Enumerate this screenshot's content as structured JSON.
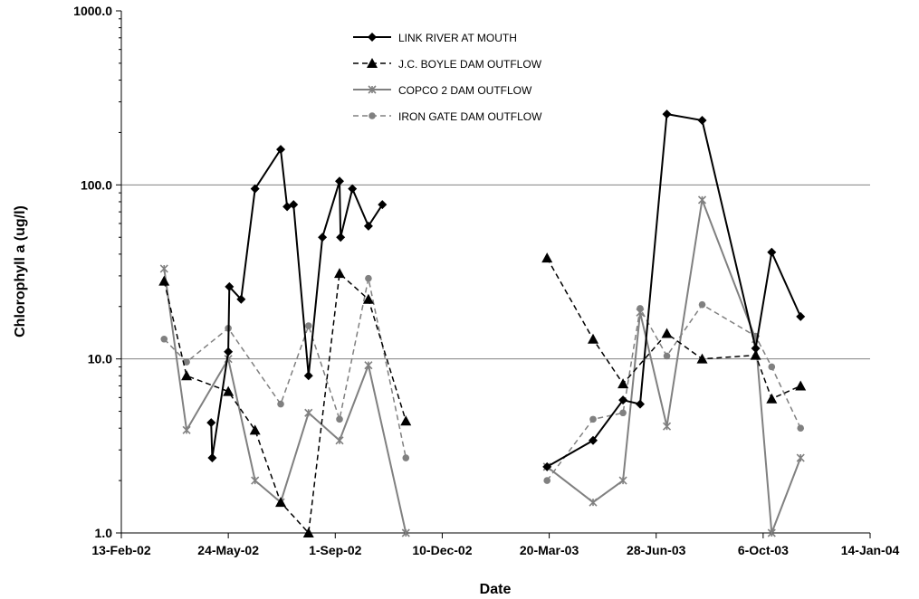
{
  "chart_data": {
    "type": "line",
    "xlabel": "Date",
    "ylabel": "Chlorophyll a (ug/l)",
    "y_scale": "log",
    "ylim": [
      1,
      1000
    ],
    "xlim": [
      "2002-02-13",
      "2004-01-14"
    ],
    "x_ticks": [
      {
        "date": "2002-02-13",
        "label": "13-Feb-02"
      },
      {
        "date": "2002-05-24",
        "label": "24-May-02"
      },
      {
        "date": "2002-09-01",
        "label": "1-Sep-02"
      },
      {
        "date": "2002-12-10",
        "label": "10-Dec-02"
      },
      {
        "date": "2003-03-20",
        "label": "20-Mar-03"
      },
      {
        "date": "2003-06-28",
        "label": "28-Jun-03"
      },
      {
        "date": "2003-10-06",
        "label": "6-Oct-03"
      },
      {
        "date": "2004-01-14",
        "label": "14-Jan-04"
      }
    ],
    "y_ticks": [
      {
        "value": 1,
        "label": "1.0"
      },
      {
        "value": 10,
        "label": "10.0"
      },
      {
        "value": 100,
        "label": "100.0"
      },
      {
        "value": 1000,
        "label": "1000.0"
      }
    ],
    "grid": "horizontal major lines at 10 and 100",
    "legend_position": "top-center",
    "series": [
      {
        "name": "LINK RIVER AT MOUTH",
        "color": "#000000",
        "dashed": false,
        "marker": "diamond",
        "segments": [
          [
            [
              "2002-05-08",
              4.3
            ],
            [
              "2002-05-09",
              2.7
            ],
            [
              "2002-05-24",
              11
            ],
            [
              "2002-05-25",
              26
            ],
            [
              "2002-06-05",
              22
            ],
            [
              "2002-06-18",
              95
            ],
            [
              "2002-07-12",
              160
            ],
            [
              "2002-07-18",
              75
            ],
            [
              "2002-07-24",
              77
            ],
            [
              "2002-08-07",
              8
            ],
            [
              "2002-08-20",
              50
            ],
            [
              "2002-09-05",
              105
            ],
            [
              "2002-09-06",
              50
            ],
            [
              "2002-09-17",
              95
            ],
            [
              "2002-10-02",
              58
            ],
            [
              "2002-10-15",
              77
            ]
          ],
          [
            [
              "2003-03-18",
              2.4
            ],
            [
              "2003-04-30",
              3.4
            ],
            [
              "2003-05-28",
              5.8
            ],
            [
              "2003-06-13",
              5.5
            ],
            [
              "2003-07-08",
              255
            ],
            [
              "2003-08-10",
              235
            ],
            [
              "2003-09-29",
              11.5
            ],
            [
              "2003-10-14",
              41
            ],
            [
              "2003-11-10",
              17.5
            ]
          ]
        ]
      },
      {
        "name": "J.C. BOYLE DAM OUTFLOW",
        "color": "#000000",
        "dashed": true,
        "marker": "triangle",
        "segments": [
          [
            [
              "2002-03-25",
              28
            ],
            [
              "2002-04-15",
              8
            ],
            [
              "2002-05-24",
              6.5
            ],
            [
              "2002-06-18",
              3.9
            ],
            [
              "2002-07-12",
              1.5
            ],
            [
              "2002-08-07",
              1.0
            ],
            [
              "2002-09-05",
              31
            ],
            [
              "2002-10-02",
              22
            ],
            [
              "2002-11-06",
              4.4
            ]
          ],
          [
            [
              "2003-03-18",
              38
            ],
            [
              "2003-04-30",
              13
            ],
            [
              "2003-05-28",
              7.2
            ],
            [
              "2003-07-08",
              14
            ],
            [
              "2003-08-10",
              10
            ],
            [
              "2003-09-29",
              10.5
            ],
            [
              "2003-10-14",
              5.9
            ],
            [
              "2003-11-10",
              7.0
            ]
          ]
        ]
      },
      {
        "name": "COPCO  2 DAM OUTFLOW",
        "color": "#808080",
        "dashed": false,
        "marker": "star",
        "segments": [
          [
            [
              "2002-03-25",
              33
            ],
            [
              "2002-04-15",
              3.9
            ],
            [
              "2002-05-24",
              10
            ],
            [
              "2002-06-18",
              2.0
            ],
            [
              "2002-07-12",
              1.5
            ],
            [
              "2002-08-07",
              4.9
            ],
            [
              "2002-09-05",
              3.4
            ],
            [
              "2002-10-02",
              9.2
            ],
            [
              "2002-11-06",
              1.0
            ]
          ],
          [
            [
              "2003-03-18",
              2.4
            ],
            [
              "2003-04-30",
              1.5
            ],
            [
              "2003-05-28",
              2.0
            ],
            [
              "2003-06-13",
              18.5
            ],
            [
              "2003-07-08",
              4.1
            ],
            [
              "2003-08-10",
              82
            ],
            [
              "2003-09-29",
              13
            ],
            [
              "2003-10-14",
              1.0
            ],
            [
              "2003-11-10",
              2.7
            ]
          ]
        ]
      },
      {
        "name": "IRON GATE DAM OUTFLOW",
        "color": "#808080",
        "dashed": true,
        "marker": "circle",
        "segments": [
          [
            [
              "2002-03-25",
              13
            ],
            [
              "2002-04-15",
              9.6
            ],
            [
              "2002-05-24",
              15
            ],
            [
              "2002-07-12",
              5.5
            ],
            [
              "2002-08-07",
              15.5
            ],
            [
              "2002-09-05",
              4.5
            ],
            [
              "2002-10-02",
              29
            ],
            [
              "2002-11-06",
              2.7
            ]
          ],
          [
            [
              "2003-03-18",
              2.0
            ],
            [
              "2003-04-30",
              4.5
            ],
            [
              "2003-05-28",
              4.9
            ],
            [
              "2003-06-13",
              19.5
            ],
            [
              "2003-07-08",
              10.4
            ],
            [
              "2003-08-10",
              20.5
            ],
            [
              "2003-09-29",
              13.5
            ],
            [
              "2003-10-14",
              9.0
            ],
            [
              "2003-11-10",
              4.0
            ]
          ]
        ]
      }
    ]
  }
}
